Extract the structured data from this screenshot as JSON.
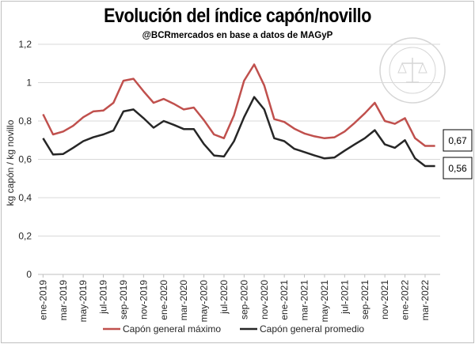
{
  "chart_data": {
    "type": "line",
    "title": "Evolución del índice capón/novillo",
    "subtitle": "@BCRmercados en base a datos de MAGyP",
    "ylabel": "kg capón / kg novillo",
    "xlabel": "",
    "ylim": [
      0,
      1.2
    ],
    "yticks": [
      "0",
      "0,2",
      "0,4",
      "0,6",
      "0,8",
      "1",
      "1,2"
    ],
    "grid": true,
    "legend": "bottom",
    "x": [
      "ene-2019",
      "feb-2019",
      "mar-2019",
      "abr-2019",
      "may-2019",
      "jun-2019",
      "jul-2019",
      "ago-2019",
      "sep-2019",
      "oct-2019",
      "nov-2019",
      "dic-2019",
      "ene-2020",
      "feb-2020",
      "mar-2020",
      "abr-2020",
      "may-2020",
      "jun-2020",
      "jul-2020",
      "ago-2020",
      "sep-2020",
      "oct-2020",
      "nov-2020",
      "dic-2020",
      "ene-2021",
      "feb-2021",
      "mar-2021",
      "abr-2021",
      "may-2021",
      "jun-2021",
      "jul-2021",
      "ago-2021",
      "sep-2021",
      "oct-2021",
      "nov-2021",
      "dic-2021",
      "ene-2022",
      "feb-2022",
      "mar-2022",
      "abr-2022"
    ],
    "xtick_labels": [
      "ene-2019",
      "mar-2019",
      "may-2019",
      "jul-2019",
      "sep-2019",
      "nov-2019",
      "ene-2020",
      "mar-2020",
      "may-2020",
      "jul-2020",
      "sep-2020",
      "nov-2020",
      "ene-2021",
      "mar-2021",
      "may-2021",
      "jul-2021",
      "sep-2021",
      "nov-2021",
      "ene-2022",
      "mar-2022"
    ],
    "series": [
      {
        "name": "Capón general máximo",
        "color": "#c0504d",
        "values": [
          0.835,
          0.73,
          0.745,
          0.775,
          0.82,
          0.85,
          0.855,
          0.895,
          1.01,
          1.02,
          0.955,
          0.895,
          0.915,
          0.89,
          0.86,
          0.87,
          0.805,
          0.73,
          0.71,
          0.83,
          1.01,
          1.095,
          0.985,
          0.81,
          0.795,
          0.76,
          0.735,
          0.72,
          0.71,
          0.715,
          0.745,
          0.79,
          0.84,
          0.895,
          0.8,
          0.785,
          0.815,
          0.71,
          0.67,
          0.67
        ],
        "end_label": "0,67"
      },
      {
        "name": "Capón general promedio",
        "color": "#262626",
        "values": [
          0.71,
          0.625,
          0.628,
          0.66,
          0.695,
          0.715,
          0.73,
          0.75,
          0.85,
          0.86,
          0.815,
          0.765,
          0.8,
          0.78,
          0.758,
          0.758,
          0.68,
          0.62,
          0.615,
          0.695,
          0.82,
          0.925,
          0.86,
          0.71,
          0.695,
          0.655,
          0.638,
          0.62,
          0.605,
          0.61,
          0.645,
          0.678,
          0.71,
          0.752,
          0.678,
          0.66,
          0.7,
          0.605,
          0.565,
          0.565
        ],
        "end_label": "0,56"
      }
    ]
  }
}
